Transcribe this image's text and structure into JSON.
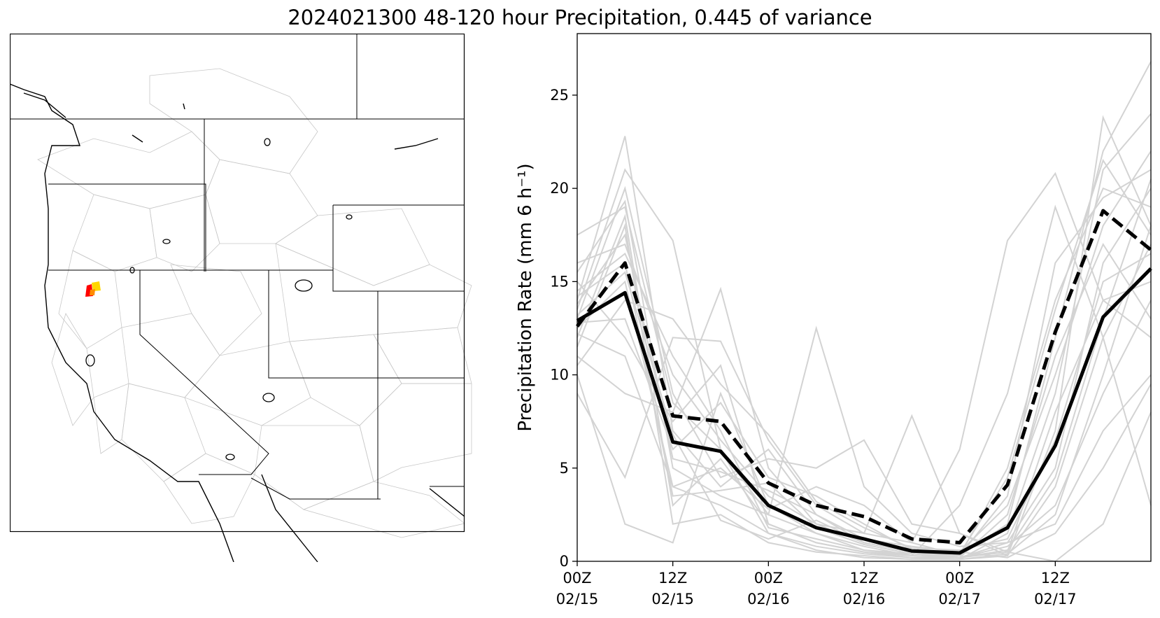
{
  "figure": {
    "title": "2024021300 48-120 hour Precipitation, 0.445 of variance"
  },
  "map": {
    "icon": "western-us-basin-map",
    "highlight_colors": [
      "#ff0000",
      "#ffd700",
      "#ff8c00"
    ]
  },
  "chart_data": {
    "type": "line",
    "title": "",
    "xlabel": "",
    "ylabel": "Precipitation Rate (mm 6 h⁻¹)",
    "x": [
      0,
      6,
      12,
      18,
      24,
      30,
      36,
      42,
      48,
      54,
      60,
      66,
      72
    ],
    "x_unit": "hours after 00Z 02/15",
    "xlim": [
      0,
      72
    ],
    "ylim": [
      0,
      28.3
    ],
    "yticks": [
      0,
      5,
      10,
      15,
      20,
      25
    ],
    "xticks": [
      {
        "x": 0,
        "line1": "00Z",
        "line2": "02/15"
      },
      {
        "x": 12,
        "line1": "12Z",
        "line2": "02/15"
      },
      {
        "x": 24,
        "line1": "00Z",
        "line2": "02/16"
      },
      {
        "x": 36,
        "line1": "12Z",
        "line2": "02/16"
      },
      {
        "x": 48,
        "line1": "00Z",
        "line2": "02/17"
      },
      {
        "x": 60,
        "line1": "12Z",
        "line2": "02/17"
      }
    ],
    "grid": false,
    "legend": "none",
    "series": [
      {
        "style": "solid-black",
        "values": [
          12.9,
          14.4,
          6.4,
          5.9,
          3.0,
          1.8,
          1.2,
          0.55,
          0.45,
          1.8,
          6.2,
          13.1,
          15.7
        ]
      },
      {
        "style": "dashed-black",
        "values": [
          12.6,
          16.0,
          7.8,
          7.5,
          4.2,
          3.0,
          2.4,
          1.2,
          1.0,
          4.1,
          12.3,
          18.8,
          16.7
        ]
      }
    ],
    "members_color": "#d3d3d3",
    "members": [
      [
        12.0,
        18.5,
        3.0,
        5.5,
        2.0,
        1.0,
        0.5,
        0.3,
        0.2,
        1.0,
        5.0,
        16.0,
        20.0
      ],
      [
        14.0,
        22.8,
        7.0,
        4.0,
        6.0,
        2.5,
        1.0,
        0.5,
        0.3,
        2.0,
        12.0,
        22.0,
        26.8
      ],
      [
        13.5,
        21.0,
        17.2,
        6.0,
        2.5,
        1.5,
        0.8,
        0.3,
        0.2,
        0.5,
        8.0,
        14.0,
        15.0
      ],
      [
        11.0,
        9.0,
        8.0,
        14.6,
        5.0,
        2.0,
        1.0,
        0.5,
        0.5,
        3.0,
        10.0,
        18.0,
        22.0
      ],
      [
        15.5,
        19.3,
        5.0,
        3.5,
        2.5,
        12.5,
        4.0,
        1.5,
        0.8,
        1.0,
        2.0,
        7.0,
        10.0
      ],
      [
        9.0,
        4.5,
        12.0,
        11.8,
        6.5,
        3.0,
        1.5,
        7.8,
        1.5,
        0.3,
        4.0,
        12.0,
        17.0
      ],
      [
        16.0,
        17.0,
        10.0,
        6.5,
        3.5,
        2.0,
        1.5,
        1.0,
        6.0,
        17.2,
        20.8,
        14.0,
        12.0
      ],
      [
        12.5,
        15.0,
        4.0,
        3.0,
        1.5,
        0.8,
        0.4,
        0.2,
        0.1,
        0.3,
        7.0,
        23.8,
        18.0
      ],
      [
        10.0,
        2.0,
        1.0,
        9.0,
        3.0,
        1.5,
        0.6,
        0.3,
        3.0,
        9.0,
        19.0,
        12.0,
        3.0
      ],
      [
        13.0,
        20.0,
        9.0,
        4.5,
        5.5,
        5.0,
        6.5,
        2.0,
        1.5,
        0.5,
        0.0,
        2.0,
        8.0
      ],
      [
        14.5,
        16.5,
        11.0,
        7.0,
        1.8,
        1.2,
        0.6,
        0.4,
        0.3,
        5.0,
        14.0,
        20.0,
        19.0
      ],
      [
        12.8,
        13.0,
        6.0,
        8.5,
        4.5,
        3.5,
        2.0,
        0.6,
        0.2,
        0.8,
        3.0,
        9.0,
        14.0
      ],
      [
        11.5,
        18.0,
        2.0,
        2.5,
        1.0,
        0.5,
        0.3,
        0.1,
        0.1,
        1.5,
        9.0,
        21.0,
        24.0
      ],
      [
        15.0,
        12.0,
        7.5,
        10.5,
        2.0,
        1.0,
        0.5,
        0.2,
        0.2,
        2.5,
        11.0,
        17.0,
        13.0
      ],
      [
        13.8,
        17.5,
        5.5,
        4.8,
        3.8,
        2.5,
        1.2,
        0.8,
        0.5,
        0.2,
        1.5,
        5.0,
        9.5
      ],
      [
        12.2,
        11.0,
        4.0,
        5.0,
        2.8,
        4.0,
        3.0,
        1.0,
        0.3,
        3.5,
        16.0,
        19.5,
        21.0
      ],
      [
        17.5,
        19.0,
        8.5,
        6.0,
        1.5,
        0.6,
        0.2,
        0.1,
        0.1,
        0.4,
        2.5,
        10.0,
        18.0
      ],
      [
        10.5,
        14.0,
        13.0,
        9.5,
        6.8,
        3.2,
        1.8,
        0.7,
        0.6,
        1.2,
        6.5,
        15.0,
        16.5
      ],
      [
        14.2,
        16.0,
        3.5,
        3.8,
        4.2,
        1.8,
        0.9,
        0.4,
        0.2,
        0.6,
        4.5,
        13.0,
        20.5
      ],
      [
        13.2,
        15.5,
        6.8,
        2.2,
        1.2,
        2.2,
        1.0,
        0.5,
        0.4,
        4.5,
        13.5,
        21.5,
        17.5
      ]
    ]
  }
}
